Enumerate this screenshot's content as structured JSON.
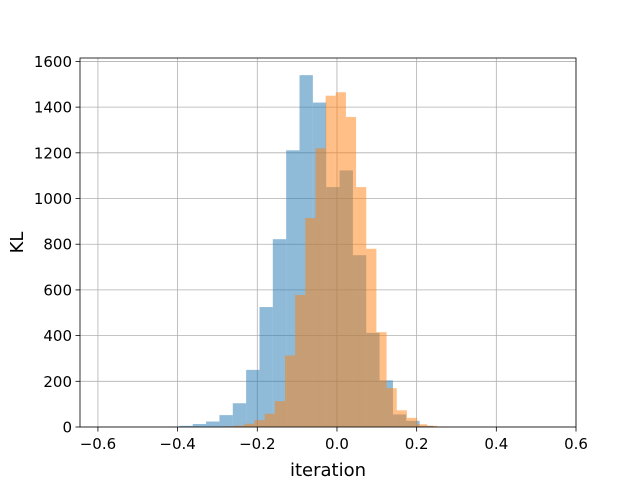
{
  "chart_data": {
    "type": "bar",
    "title": "",
    "xlabel": "iteration",
    "ylabel": "KL",
    "xlim": [
      -0.645,
      0.6
    ],
    "ylim": [
      0,
      1615
    ],
    "grid": true,
    "xticks": [
      -0.6,
      -0.4,
      -0.2,
      0.0,
      0.2,
      0.4,
      0.6
    ],
    "xtick_labels": [
      "−0.6",
      "−0.4",
      "−0.2",
      "0.0",
      "0.2",
      "0.4",
      "0.6"
    ],
    "yticks": [
      0,
      200,
      400,
      600,
      800,
      1000,
      1200,
      1400,
      1600
    ],
    "ytick_labels": [
      "0",
      "200",
      "400",
      "600",
      "800",
      "1000",
      "1200",
      "1400",
      "1600"
    ],
    "series": [
      {
        "color": "#1f77b4",
        "alpha": 0.5,
        "bin_width": 0.0335,
        "bin_edges_start": -0.63,
        "values": [
          1,
          0,
          0,
          0,
          1,
          1,
          2,
          5,
          13,
          24,
          52,
          104,
          250,
          525,
          822,
          1211,
          1540,
          1420,
          1050,
          1123,
          752,
          412,
          204,
          55,
          27,
          5,
          1,
          0,
          0,
          0,
          0,
          0,
          0,
          0,
          0,
          0,
          0,
          0
        ]
      },
      {
        "color": "#ff7f0e",
        "alpha": 0.5,
        "bin_width": 0.0255,
        "bin_edges_start": -0.36,
        "values": [
          1,
          0,
          2,
          3,
          6,
          14,
          30,
          58,
          113,
          313,
          578,
          915,
          1220,
          1450,
          1465,
          1357,
          1050,
          780,
          415,
          170,
          73,
          40,
          12,
          5,
          2,
          1
        ]
      }
    ]
  }
}
